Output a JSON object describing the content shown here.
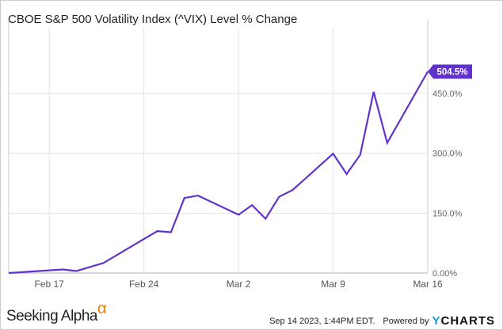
{
  "chart_data": {
    "type": "line",
    "title": "CBOE S&P 500 Volatility Index (^VIX) Level % Change",
    "series": [
      {
        "x": [
          "2020-02-14",
          "2020-02-18",
          "2020-02-19",
          "2020-02-20",
          "2020-02-21",
          "2020-02-24",
          "2020-02-25",
          "2020-02-26",
          "2020-02-27",
          "2020-02-28",
          "2020-03-02",
          "2020-03-03",
          "2020-03-04",
          "2020-03-05",
          "2020-03-06",
          "2020-03-09",
          "2020-03-10",
          "2020-03-11",
          "2020-03-12",
          "2020-03-13",
          "2020-03-16"
        ],
        "values": [
          0,
          9,
          5,
          15,
          25,
          85,
          105,
          102,
          188,
          194,
          146,
          170,
          136,
          191,
          208,
          299,
          248,
          296,
          454,
          326,
          504.5
        ]
      }
    ],
    "x_tick_labels": [
      "Feb 17",
      "Feb 24",
      "Mar 2",
      "Mar 9",
      "Mar 16"
    ],
    "y_tick_labels": [
      "0.00%",
      "150.0%",
      "300.0%",
      "450.0%"
    ],
    "y_ticks": [
      0,
      150,
      300,
      450
    ],
    "ylim": [
      0,
      520
    ],
    "last_value_label": "504.5%",
    "grid": true,
    "y_axis_side": "right",
    "line_color": "#6233cc"
  },
  "footer": {
    "brand": "Seeking Alpha",
    "brand_symbol": "α",
    "timestamp": "Sep 14 2023, 1:44PM EDT.",
    "powered_by": "Powered by",
    "ycharts_y": "Y",
    "ycharts_rest": "CHARTS"
  }
}
